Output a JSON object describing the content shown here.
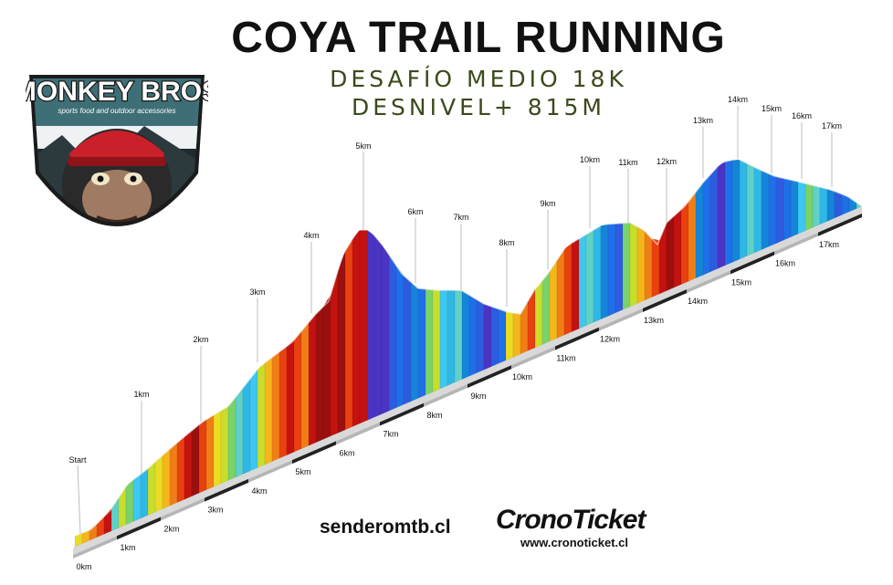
{
  "title": "COYA TRAIL RUNNING",
  "subtitle1": "DESAFÍO MEDIO 18K",
  "subtitle2": "DESNIVEL+ 815M",
  "logo": {
    "brand_text": "MONKEY BROS",
    "tagline": "sports food and outdoor accessories"
  },
  "footer": {
    "site": "senderomtb.cl",
    "brand": "CronoTicket",
    "url": "www.cronoticket.cl"
  },
  "profile": {
    "start_label": "Start",
    "peak_labels": [
      "1km",
      "2km",
      "3km",
      "4km",
      "5km",
      "6km",
      "7km",
      "8km",
      "9km",
      "10km",
      "11km",
      "12km",
      "13km",
      "14km",
      "15km",
      "16km",
      "17km"
    ],
    "base_labels": [
      "0km",
      "1km",
      "2km",
      "3km",
      "4km",
      "5km",
      "6km",
      "7km",
      "8km",
      "9km",
      "10km",
      "11km",
      "12km",
      "13km",
      "14km",
      "15km",
      "16km",
      "17km"
    ],
    "distance_km": 18,
    "elevation_gain_m": 815,
    "palette": [
      "#2fb8e6",
      "#5fd1c6",
      "#3ec7f0",
      "#79d36b",
      "#c9dd2b",
      "#eadb23",
      "#f5b61c",
      "#f07e16",
      "#e8400f",
      "#c41210",
      "#9c0f0f",
      "#4a34c4",
      "#2e5ce0",
      "#1e6fe8",
      "#1485d8"
    ]
  }
}
